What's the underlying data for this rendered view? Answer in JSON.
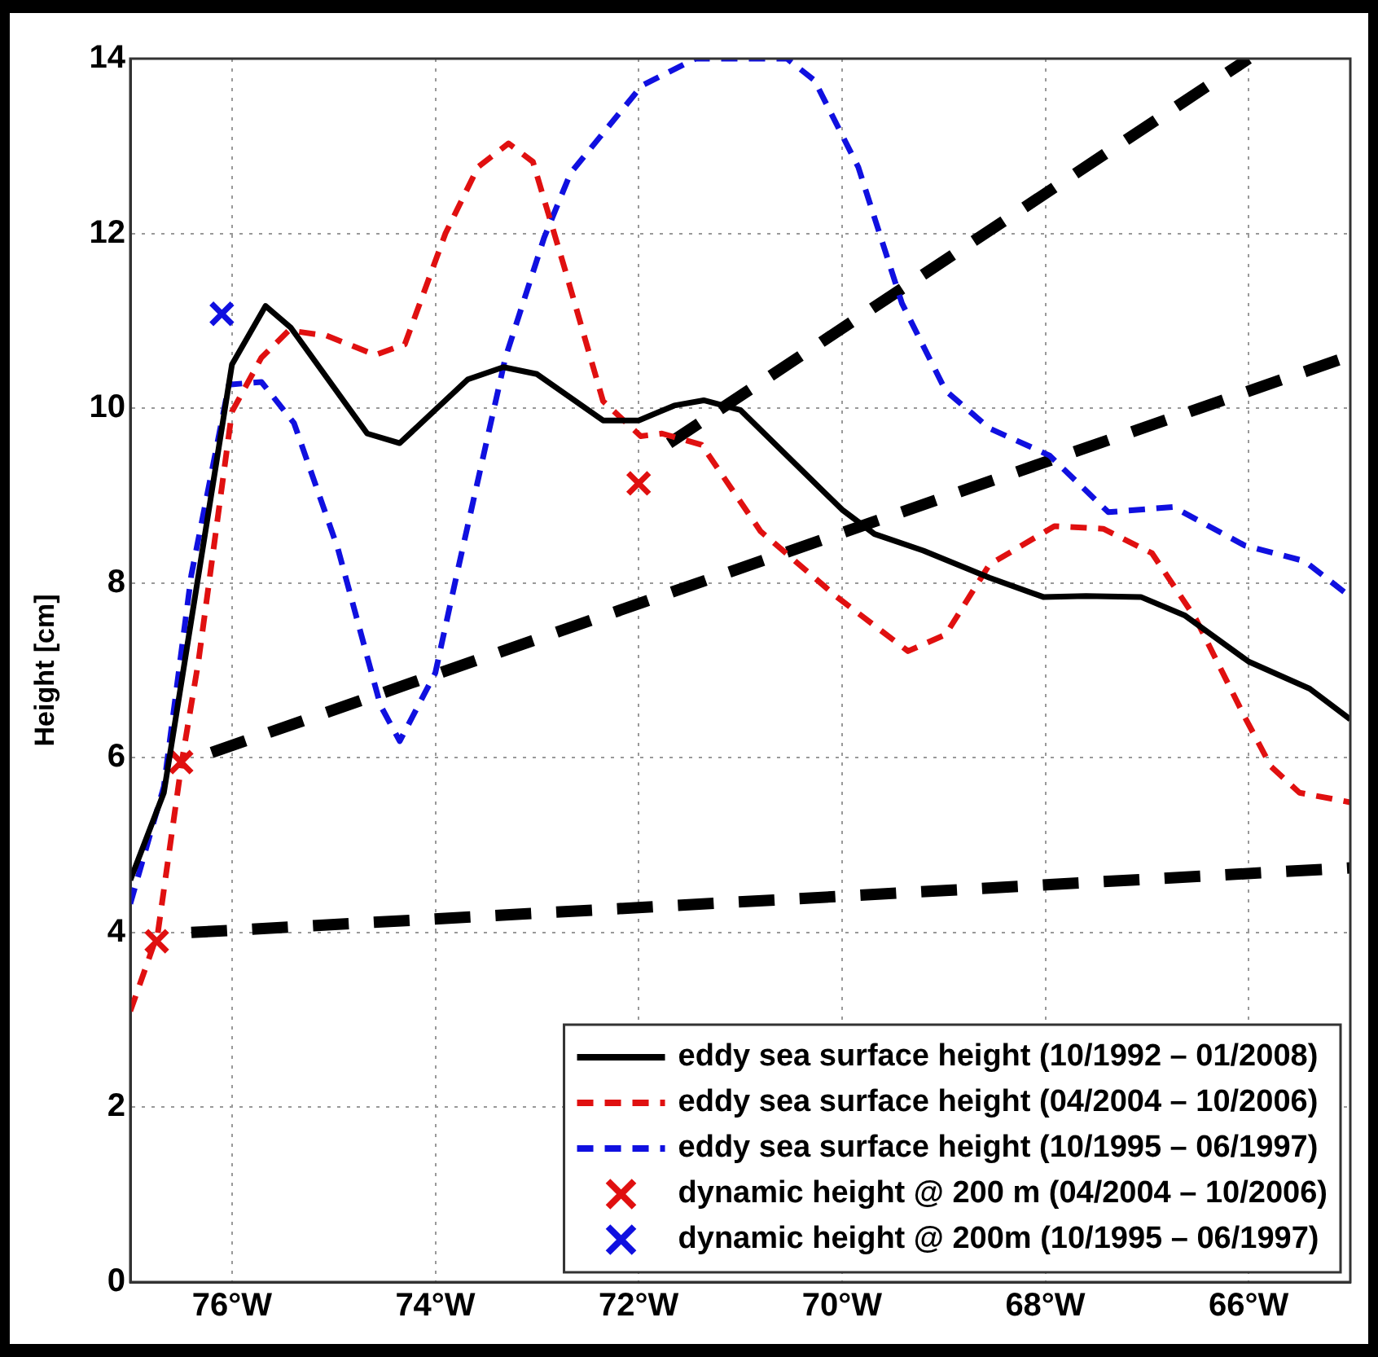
{
  "chart_data": {
    "type": "line",
    "ylabel": "Height [cm]",
    "xlim": [
      -77,
      -65
    ],
    "ylim": [
      0,
      14
    ],
    "xticks": [
      {
        "value": -76,
        "label": "76°W"
      },
      {
        "value": -74,
        "label": "74°W"
      },
      {
        "value": -72,
        "label": "72°W"
      },
      {
        "value": -70,
        "label": "70°W"
      },
      {
        "value": -68,
        "label": "68°W"
      },
      {
        "value": -66,
        "label": "66°W"
      }
    ],
    "yticks": [
      0,
      2,
      4,
      6,
      8,
      10,
      12,
      14
    ],
    "grid": true,
    "legend": "bottom right",
    "series": [
      {
        "name": "eddy sea surface height (10/1992 – 01/2008)",
        "color": "#000000",
        "line_style": "solid",
        "marker": "none",
        "x": [
          -77,
          -76.67,
          -76.0,
          -75.67,
          -75.42,
          -74.67,
          -74.35,
          -73.68,
          -73.33,
          -73.0,
          -72.35,
          -72.0,
          -71.65,
          -71.36,
          -71.0,
          -70.0,
          -69.68,
          -69.2,
          -68.55,
          -68.02,
          -67.6,
          -67.06,
          -66.63,
          -66.0,
          -65.4,
          -65
        ],
        "values": [
          4.6,
          5.6,
          10.5,
          11.17,
          10.92,
          9.71,
          9.6,
          10.33,
          10.47,
          10.39,
          9.86,
          9.86,
          10.03,
          10.09,
          9.98,
          8.84,
          8.56,
          8.37,
          8.06,
          7.84,
          7.85,
          7.84,
          7.63,
          7.1,
          6.79,
          6.44
        ]
      },
      {
        "name": "eddy sea surface height (04/2004 – 10/2006)",
        "color": "#e01010",
        "line_style": "dashed",
        "marker": "none",
        "x": [
          -77,
          -76.73,
          -76.49,
          -76.33,
          -76.0,
          -75.71,
          -75.44,
          -75.07,
          -74.59,
          -74.3,
          -73.9,
          -73.58,
          -73.28,
          -73.04,
          -72.72,
          -72.35,
          -71.98,
          -71.77,
          -71.38,
          -70.8,
          -70.05,
          -69.35,
          -68.98,
          -68.55,
          -67.91,
          -67.43,
          -66.95,
          -66.52,
          -66.04,
          -65.78,
          -65.5,
          -65
        ],
        "values": [
          3.1,
          3.99,
          5.98,
          7.1,
          9.96,
          10.58,
          10.89,
          10.83,
          10.61,
          10.73,
          12.0,
          12.76,
          13.03,
          12.82,
          11.57,
          10.08,
          9.68,
          9.71,
          9.58,
          8.59,
          7.84,
          7.22,
          7.41,
          8.21,
          8.65,
          8.62,
          8.34,
          7.59,
          6.47,
          5.9,
          5.6,
          5.49
        ]
      },
      {
        "name": "eddy sea surface height (10/1995 – 06/1997)",
        "color": "#1010e0",
        "line_style": "dashed",
        "marker": "none",
        "x": [
          -77,
          -76.67,
          -76.4,
          -76.03,
          -75.71,
          -75.39,
          -74.96,
          -74.54,
          -74.35,
          -74.0,
          -73.79,
          -73.31,
          -72.93,
          -72.67,
          -71.97,
          -71.44,
          -70.54,
          -70.27,
          -69.84,
          -69.41,
          -68.98,
          -68.55,
          -67.96,
          -67.38,
          -66.74,
          -66.04,
          -65.45,
          -65.03
        ],
        "values": [
          4.33,
          5.67,
          8.09,
          10.27,
          10.3,
          9.83,
          8.4,
          6.6,
          6.19,
          6.97,
          8.09,
          10.58,
          11.95,
          12.69,
          13.69,
          14.0,
          14.0,
          13.75,
          12.76,
          11.2,
          10.2,
          9.77,
          9.46,
          8.81,
          8.87,
          8.43,
          8.25,
          7.87
        ]
      },
      {
        "name": "dynamic height @ 200 m (04/2004 – 10/2006)",
        "type": "scatter",
        "color": "#e01010",
        "marker": "cross",
        "x": [
          -76.74,
          -76.5,
          -72.0
        ],
        "values": [
          3.9,
          5.95,
          9.14
        ]
      },
      {
        "name": "dynamic height @ 200m (10/1995 – 06/1997)",
        "type": "scatter",
        "color": "#1010e0",
        "marker": "cross",
        "x": [
          -76.1
        ],
        "values": [
          11.08
        ]
      },
      {
        "color": "#000000",
        "line_style": "dashed",
        "marker": "none",
        "x": [
          -76.4,
          -65
        ],
        "values": [
          4.0,
          4.74
        ]
      },
      {
        "color": "#000000",
        "line_style": "dashed",
        "marker": "none",
        "x": [
          -76.2,
          -65
        ],
        "values": [
          6.06,
          10.6
        ]
      },
      {
        "color": "#000000",
        "line_style": "dashed",
        "marker": "none",
        "x": [
          -71.7,
          -66.0
        ],
        "values": [
          9.6,
          14
        ]
      }
    ]
  }
}
